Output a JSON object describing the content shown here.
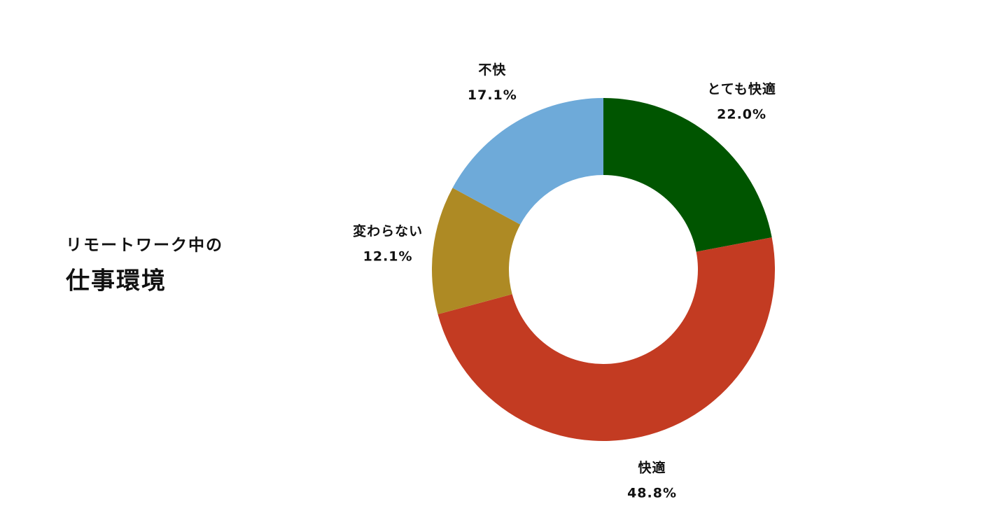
{
  "chart_data": {
    "type": "donut",
    "subtitle": "リモートワーク中の",
    "title": "仕事環境",
    "categories": [
      "とても快適",
      "快適",
      "変わらない",
      "不快"
    ],
    "values": [
      22.0,
      48.8,
      12.1,
      17.1
    ],
    "value_labels": [
      "22.0%",
      "48.8%",
      "12.1%",
      "17.1%"
    ],
    "colors": [
      "#005500",
      "#c33b22",
      "#ae8a24",
      "#6eaad9"
    ]
  }
}
